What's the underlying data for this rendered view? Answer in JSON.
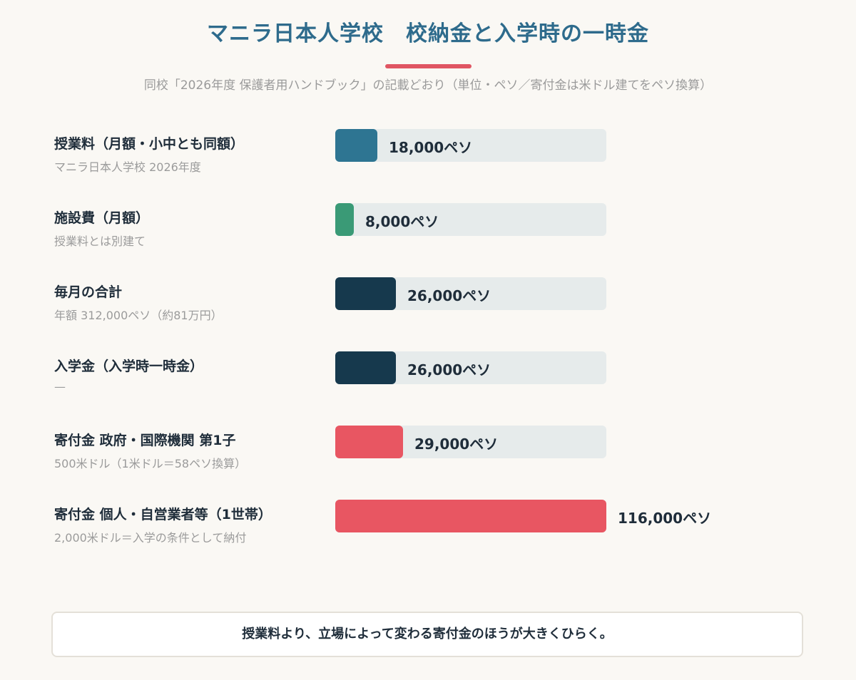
{
  "title": "マニラ日本人学校　校納金と入学時の一時金",
  "subtitle": "同校「2026年度 保護者用ハンドブック」の記載どおり（単位・ペソ／寄付金は米ドル建てをペソ換算）",
  "footer": "授業料より、立場によって変わる寄付金のほうが大きくひらく。",
  "colors": {
    "accent_title": "#2e6b8c",
    "accent_rule": "#e05663",
    "track": "#e6ebeb"
  },
  "chart_data": {
    "type": "bar",
    "orientation": "horizontal",
    "unit": "ペソ",
    "xlim": [
      0,
      116000
    ],
    "categories": [
      "授業料（月額・小中とも同額）",
      "施設費（月額）",
      "毎月の合計",
      "入学金（入学時一時金）",
      "寄付金 政府・国際機関 第1子",
      "寄付金 個人・自営業者等（1世帯）"
    ],
    "notes": [
      "マニラ日本人学校 2026年度",
      "授業料とは別建て",
      "年額 312,000ペソ（約81万円）",
      "—",
      "500米ドル（1米ドル＝58ペソ換算）",
      "2,000米ドル＝入学の条件として納付"
    ],
    "values": [
      18000,
      8000,
      26000,
      26000,
      29000,
      116000
    ],
    "value_labels": [
      "18,000ペソ",
      "8,000ペソ",
      "26,000ペソ",
      "26,000ペソ",
      "29,000ペソ",
      "116,000ペソ"
    ],
    "bar_colors": [
      "#2e7592",
      "#3a9a76",
      "#16394d",
      "#16394d",
      "#e85662",
      "#e85662"
    ]
  }
}
